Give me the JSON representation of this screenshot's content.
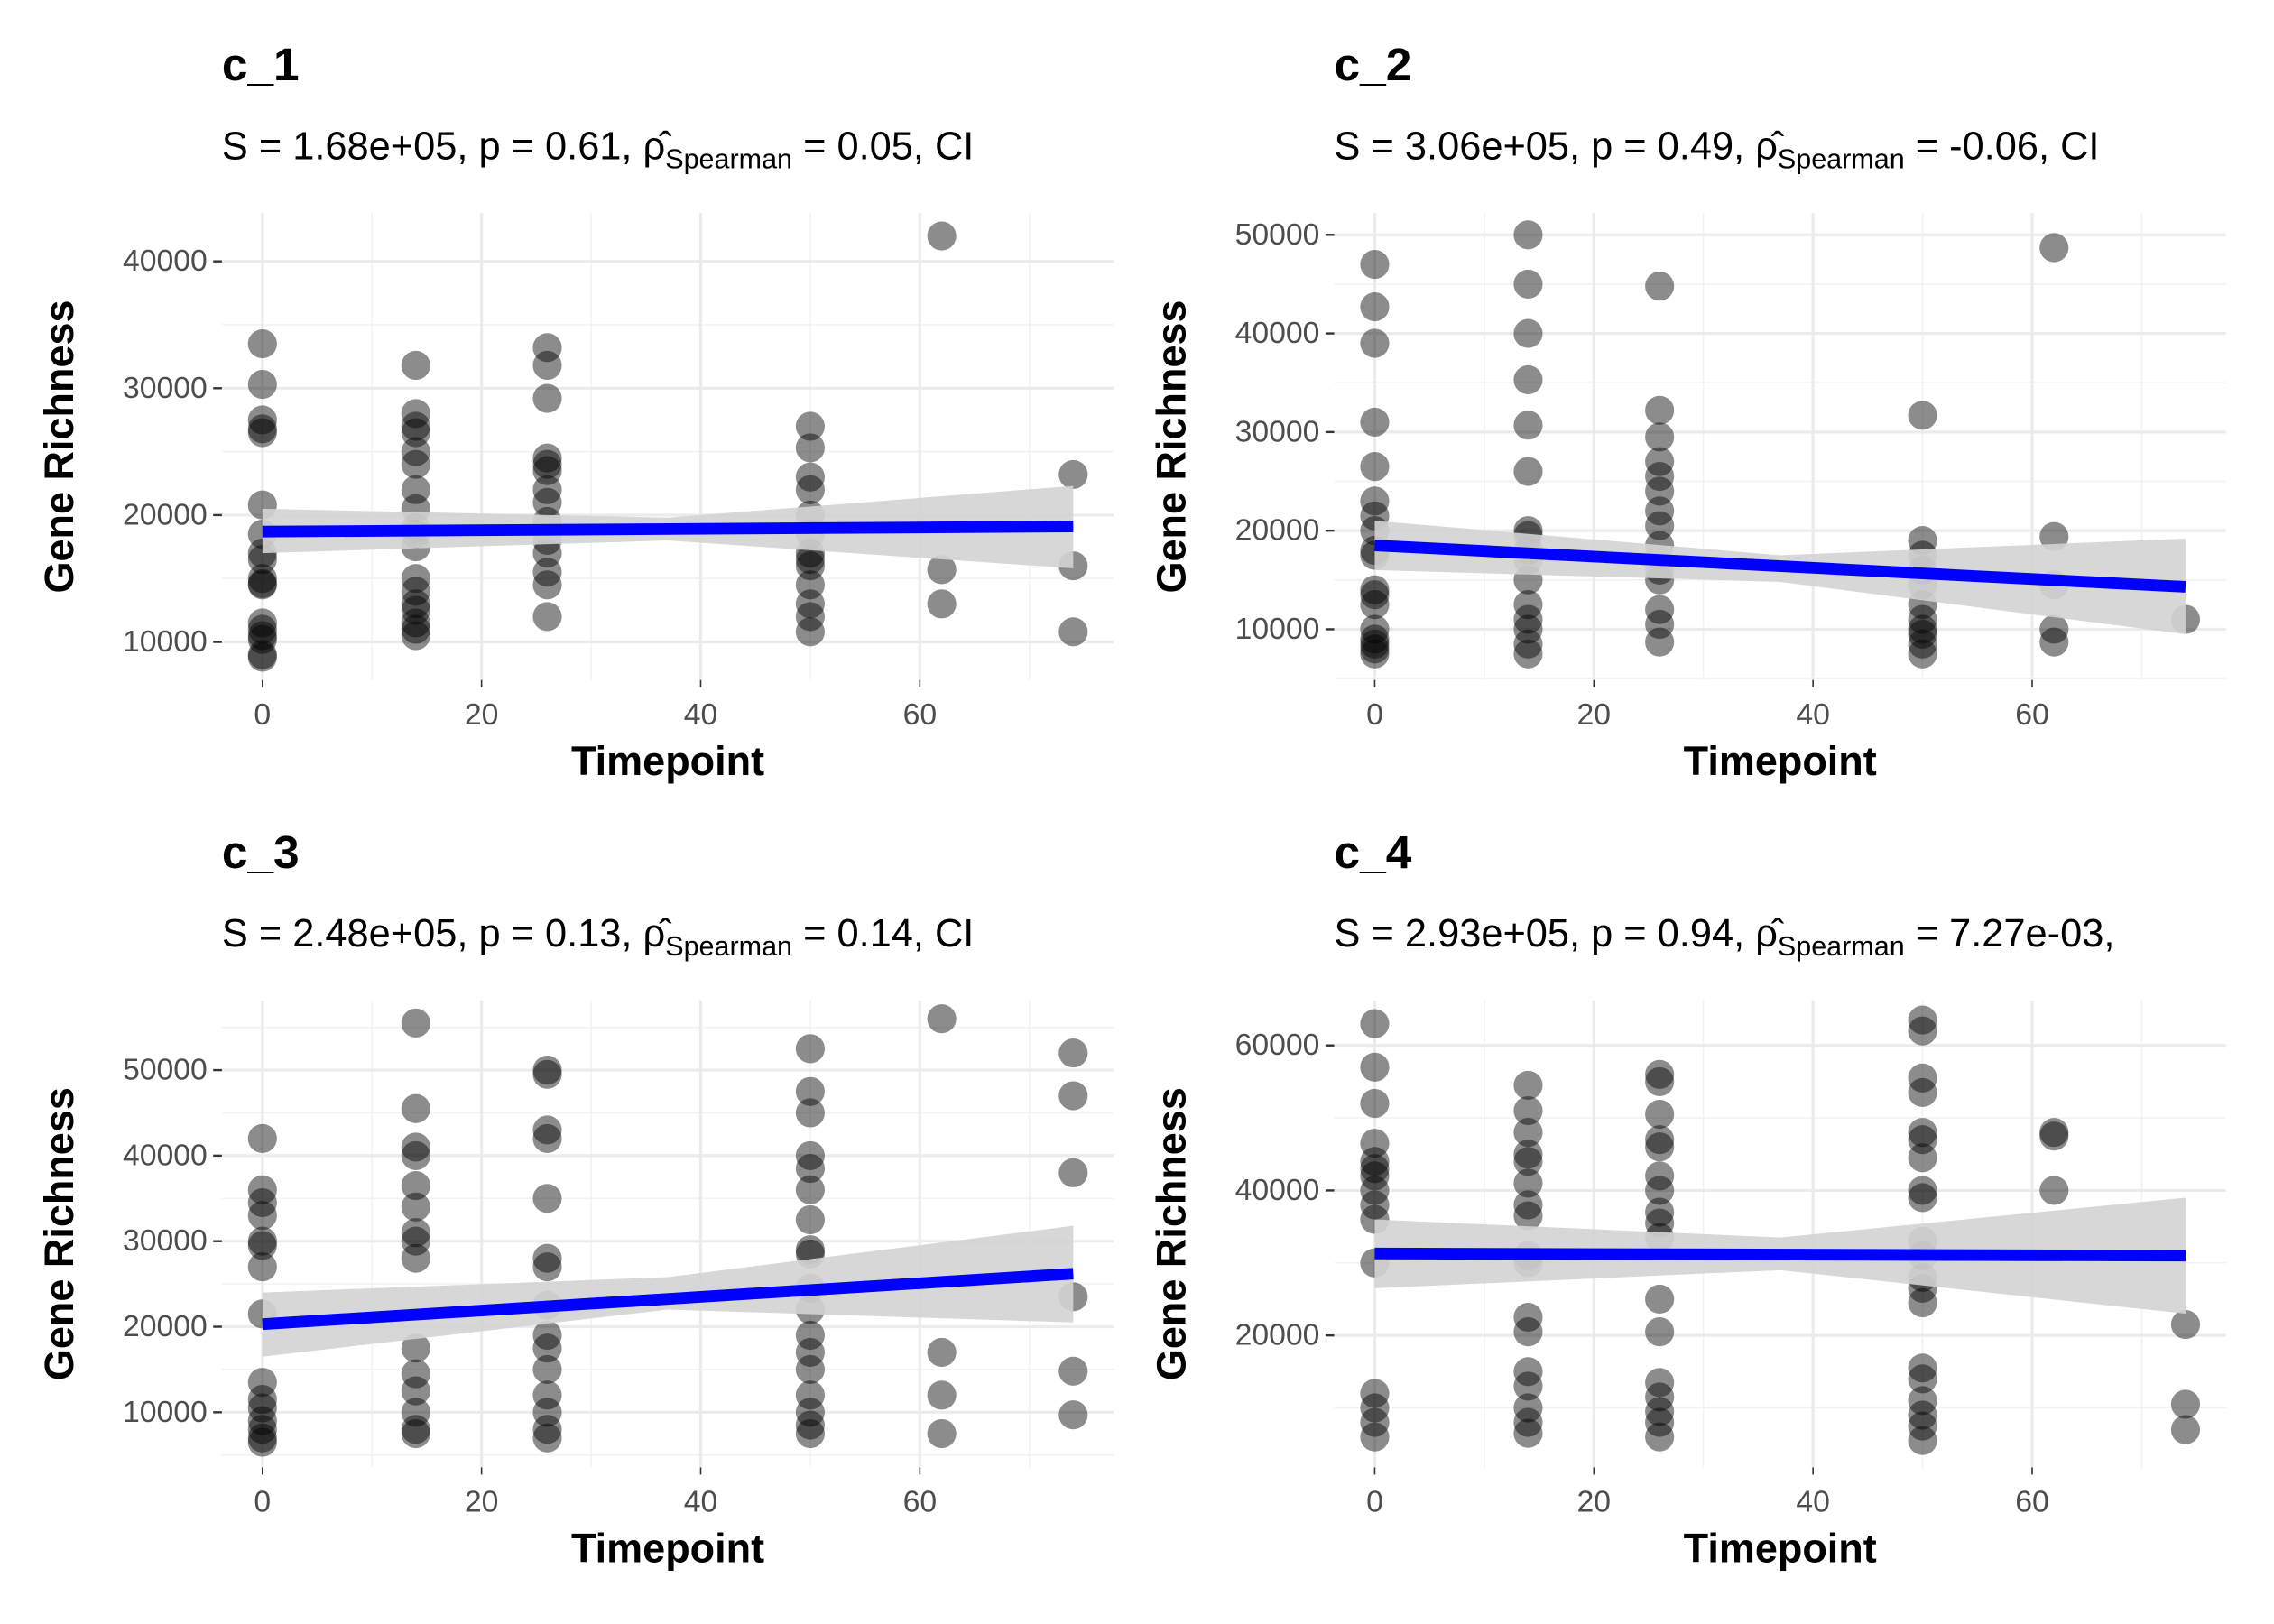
{
  "chart_data": [
    {
      "type": "scatter",
      "title": "c_1",
      "subtitle_parts": [
        "S = 1.68e+05, p = 0.61, ρ̂",
        "Spearman",
        " = 0.05, CI"
      ],
      "xlabel": "Timepoint",
      "ylabel": "Gene Richness",
      "x": [
        0,
        0,
        0,
        0,
        0,
        0,
        0,
        0,
        0,
        0,
        0,
        0,
        0,
        0,
        0,
        0,
        0,
        0,
        14,
        14,
        14,
        14,
        14,
        14,
        14,
        14,
        14,
        14,
        14,
        14,
        14,
        14,
        14,
        14,
        14,
        14,
        26,
        26,
        26,
        26,
        26,
        26,
        26,
        26,
        26,
        26,
        26,
        26,
        26,
        26,
        50,
        50,
        50,
        50,
        50,
        50,
        50,
        50,
        50,
        50,
        50,
        50,
        50,
        62,
        62,
        62,
        74,
        74,
        74
      ],
      "values": [
        33500,
        30300,
        27500,
        26800,
        26500,
        20800,
        18500,
        17000,
        16500,
        15000,
        14500,
        14600,
        11500,
        11000,
        10500,
        9000,
        8800,
        10200,
        31800,
        28000,
        27000,
        26500,
        25000,
        24000,
        22000,
        20500,
        19000,
        18500,
        17500,
        15000,
        14000,
        13000,
        12500,
        11500,
        11000,
        10500,
        33200,
        31800,
        29200,
        24500,
        24000,
        23500,
        22000,
        21000,
        19500,
        18000,
        17000,
        15500,
        14500,
        12000,
        27000,
        25300,
        23000,
        22000,
        20000,
        18500,
        17000,
        16500,
        16000,
        14500,
        13000,
        12000,
        10800,
        42000,
        15700,
        13000,
        23200,
        16000,
        10800
      ],
      "point_color": "#000000",
      "fit": {
        "color": "#0000ff",
        "x": [
          0,
          74
        ],
        "y": [
          18700,
          19100
        ],
        "ci_x": [
          0,
          37,
          74
        ],
        "ci_lower": [
          17000,
          18000,
          15800
        ],
        "ci_upper": [
          20500,
          19800,
          22300
        ],
        "ci_color": "#d3d3d3"
      },
      "xlim": [
        -3.7,
        77.7
      ],
      "xticks": [
        0,
        20,
        40,
        60
      ],
      "ylim": [
        7000,
        43800
      ],
      "yticks": [
        10000,
        20000,
        30000,
        40000
      ],
      "grid": true
    },
    {
      "type": "scatter",
      "title": "c_2",
      "subtitle_parts": [
        "S = 3.06e+05, p = 0.49, ρ̂",
        "Spearman",
        " = -0.06, CI"
      ],
      "xlabel": "Timepoint",
      "ylabel": "Gene Richness",
      "x": [
        0,
        0,
        0,
        0,
        0,
        0,
        0,
        0,
        0,
        0,
        0,
        0,
        0,
        0,
        0,
        0,
        0,
        0,
        14,
        14,
        14,
        14,
        14,
        14,
        14,
        14,
        14,
        14,
        14,
        14,
        14,
        14,
        14,
        14,
        26,
        26,
        26,
        26,
        26,
        26,
        26,
        26,
        26,
        26,
        26,
        26,
        26,
        26,
        50,
        50,
        50,
        50,
        50,
        50,
        50,
        50,
        50,
        50,
        50,
        62,
        62,
        62,
        62,
        62,
        74
      ],
      "values": [
        47000,
        42700,
        39000,
        31000,
        26500,
        23000,
        21500,
        20000,
        18000,
        17500,
        14000,
        13500,
        12500,
        10000,
        9000,
        8500,
        8000,
        7500,
        50000,
        45000,
        40000,
        35300,
        30700,
        26000,
        20000,
        19500,
        18000,
        17000,
        15000,
        12500,
        11000,
        10000,
        8500,
        7500,
        44800,
        32200,
        29500,
        27000,
        25500,
        24000,
        22000,
        20500,
        18500,
        16000,
        15000,
        12000,
        10500,
        8700,
        31700,
        19000,
        17500,
        16000,
        14500,
        12500,
        11000,
        10000,
        9500,
        8500,
        7500,
        48700,
        19400,
        14500,
        10000,
        8700,
        11000
      ],
      "point_color": "#000000",
      "fit": {
        "color": "#0000ff",
        "x": [
          0,
          74
        ],
        "y": [
          18500,
          14300
        ],
        "ci_x": [
          0,
          37,
          74
        ],
        "ci_lower": [
          16000,
          14800,
          9500
        ],
        "ci_upper": [
          21000,
          17500,
          19200
        ],
        "ci_color": "#d3d3d3"
      },
      "xlim": [
        -3.7,
        77.7
      ],
      "xticks": [
        0,
        20,
        40,
        60
      ],
      "ylim": [
        4850,
        52200
      ],
      "yticks": [
        10000,
        20000,
        30000,
        40000,
        50000
      ],
      "grid": true
    },
    {
      "type": "scatter",
      "title": "c_3",
      "subtitle_parts": [
        "S = 2.48e+05, p = 0.13, ρ̂",
        "Spearman",
        " = 0.14, CI"
      ],
      "xlabel": "Timepoint",
      "ylabel": "Gene Richness",
      "x": [
        0,
        0,
        0,
        0,
        0,
        0,
        0,
        0,
        0,
        0,
        0,
        0,
        0,
        0,
        0,
        14,
        14,
        14,
        14,
        14,
        14,
        14,
        14,
        14,
        14,
        14,
        14,
        14,
        14,
        14,
        26,
        26,
        26,
        26,
        26,
        26,
        26,
        26,
        26,
        26,
        26,
        26,
        26,
        26,
        26,
        50,
        50,
        50,
        50,
        50,
        50,
        50,
        50,
        50,
        50,
        50,
        50,
        50,
        50,
        50,
        50,
        50,
        50,
        62,
        62,
        62,
        62,
        74,
        74,
        74,
        74,
        74,
        74
      ],
      "values": [
        42000,
        36000,
        34500,
        33000,
        30000,
        29500,
        27000,
        21500,
        13500,
        11500,
        10500,
        9000,
        8000,
        7000,
        6500,
        55500,
        45500,
        41000,
        40000,
        36500,
        34000,
        31000,
        30000,
        28000,
        17500,
        14500,
        12500,
        10000,
        8000,
        7500,
        50000,
        49500,
        43000,
        42000,
        35000,
        28000,
        27000,
        22500,
        19000,
        17500,
        15000,
        12000,
        10000,
        8000,
        7000,
        52500,
        47500,
        45000,
        40000,
        38500,
        36000,
        32500,
        29000,
        28500,
        24500,
        22000,
        19000,
        17000,
        15000,
        12000,
        10000,
        8500,
        7500,
        56000,
        17000,
        12000,
        7500,
        52000,
        47000,
        38000,
        23500,
        14800,
        9700
      ],
      "point_color": "#000000",
      "fit": {
        "color": "#0000ff",
        "x": [
          0,
          74
        ],
        "y": [
          20300,
          26200
        ],
        "ci_x": [
          0,
          37,
          74
        ],
        "ci_lower": [
          16500,
          22000,
          20500
        ],
        "ci_upper": [
          24000,
          25800,
          31800
        ],
        "ci_color": "#d3d3d3"
      },
      "xlim": [
        -3.7,
        77.7
      ],
      "xticks": [
        0,
        20,
        40,
        60
      ],
      "ylim": [
        3560,
        58140
      ],
      "yticks": [
        10000,
        20000,
        30000,
        40000,
        50000
      ],
      "grid": true
    },
    {
      "type": "scatter",
      "title": "c_4",
      "subtitle_parts": [
        "S = 2.93e+05, p = 0.94, ρ̂",
        "Spearman",
        " = 7.27e-03,"
      ],
      "xlabel": "Timepoint",
      "ylabel": "Gene Richness",
      "x": [
        0,
        0,
        0,
        0,
        0,
        0,
        0,
        0,
        0,
        0,
        0,
        0,
        0,
        0,
        0,
        14,
        14,
        14,
        14,
        14,
        14,
        14,
        14,
        14,
        14,
        14,
        14,
        14,
        14,
        14,
        14,
        14,
        26,
        26,
        26,
        26,
        26,
        26,
        26,
        26,
        26,
        26,
        26,
        26,
        26,
        26,
        26,
        26,
        26,
        50,
        50,
        50,
        50,
        50,
        50,
        50,
        50,
        50,
        50,
        50,
        50,
        50,
        50,
        50,
        50,
        50,
        50,
        50,
        50,
        62,
        62,
        62,
        74,
        74,
        74
      ],
      "values": [
        63000,
        57000,
        52000,
        46500,
        44000,
        43000,
        42000,
        40000,
        38000,
        36000,
        30000,
        12000,
        10000,
        8000,
        6000,
        54500,
        51000,
        48000,
        45000,
        44000,
        41000,
        38000,
        36500,
        31000,
        30000,
        22500,
        20500,
        15000,
        13000,
        10000,
        8000,
        6500,
        56000,
        55000,
        50500,
        47000,
        46000,
        42000,
        40000,
        37000,
        35500,
        33500,
        25000,
        20500,
        13500,
        11500,
        9500,
        8000,
        6000,
        63500,
        62000,
        55500,
        53500,
        48000,
        47000,
        44500,
        40000,
        39000,
        33000,
        31000,
        28000,
        26500,
        24500,
        15500,
        14000,
        11000,
        9000,
        7500,
        5500,
        48000,
        47500,
        40000,
        21500,
        10500,
        7000
      ],
      "point_color": "#000000",
      "fit": {
        "color": "#0000ff",
        "x": [
          0,
          74
        ],
        "y": [
          31300,
          31000
        ],
        "ci_x": [
          0,
          37,
          74
        ],
        "ci_lower": [
          26500,
          29000,
          23000
        ],
        "ci_upper": [
          36000,
          33500,
          39000
        ],
        "ci_color": "#d3d3d3"
      },
      "xlim": [
        -3.7,
        77.7
      ],
      "xticks": [
        0,
        20,
        40,
        60
      ],
      "ylim": [
        1800,
        66200
      ],
      "yticks": [
        20000,
        40000,
        60000
      ],
      "grid": true
    }
  ]
}
